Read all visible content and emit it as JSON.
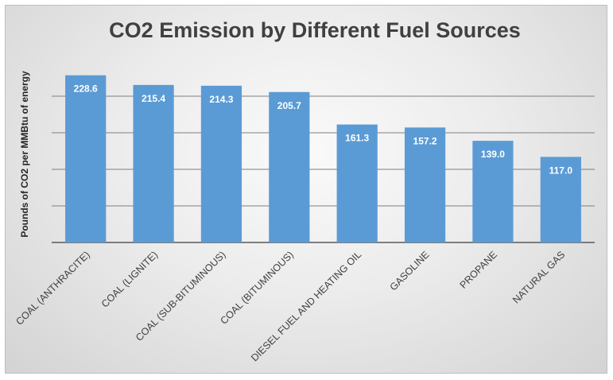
{
  "chart_data": {
    "type": "bar",
    "title": "CO2 Emission by Different Fuel Sources",
    "xlabel": "",
    "ylabel": "Pounds of CO2 per MMBtu of energy",
    "categories": [
      "COAL (ANTHRACITE)",
      "COAL (LIGNITE)",
      "COAL (SUB-BITUMINOUS)",
      "COAL (BITUMINOUS)",
      "DIESEL FUEL AND HEATING OIL",
      "GASOLINE",
      "PROPANE",
      "NATURAL GAS"
    ],
    "values": [
      228.6,
      215.4,
      214.3,
      205.7,
      161.3,
      157.2,
      139.0,
      117.0
    ],
    "data_labels": [
      "228.6",
      "215.4",
      "214.3",
      "205.7",
      "161.3",
      "157.2",
      "139.0",
      "117.0"
    ],
    "ylim": [
      0,
      250
    ],
    "grid": true,
    "legend": "none",
    "bar_color": "#5b9bd5"
  }
}
